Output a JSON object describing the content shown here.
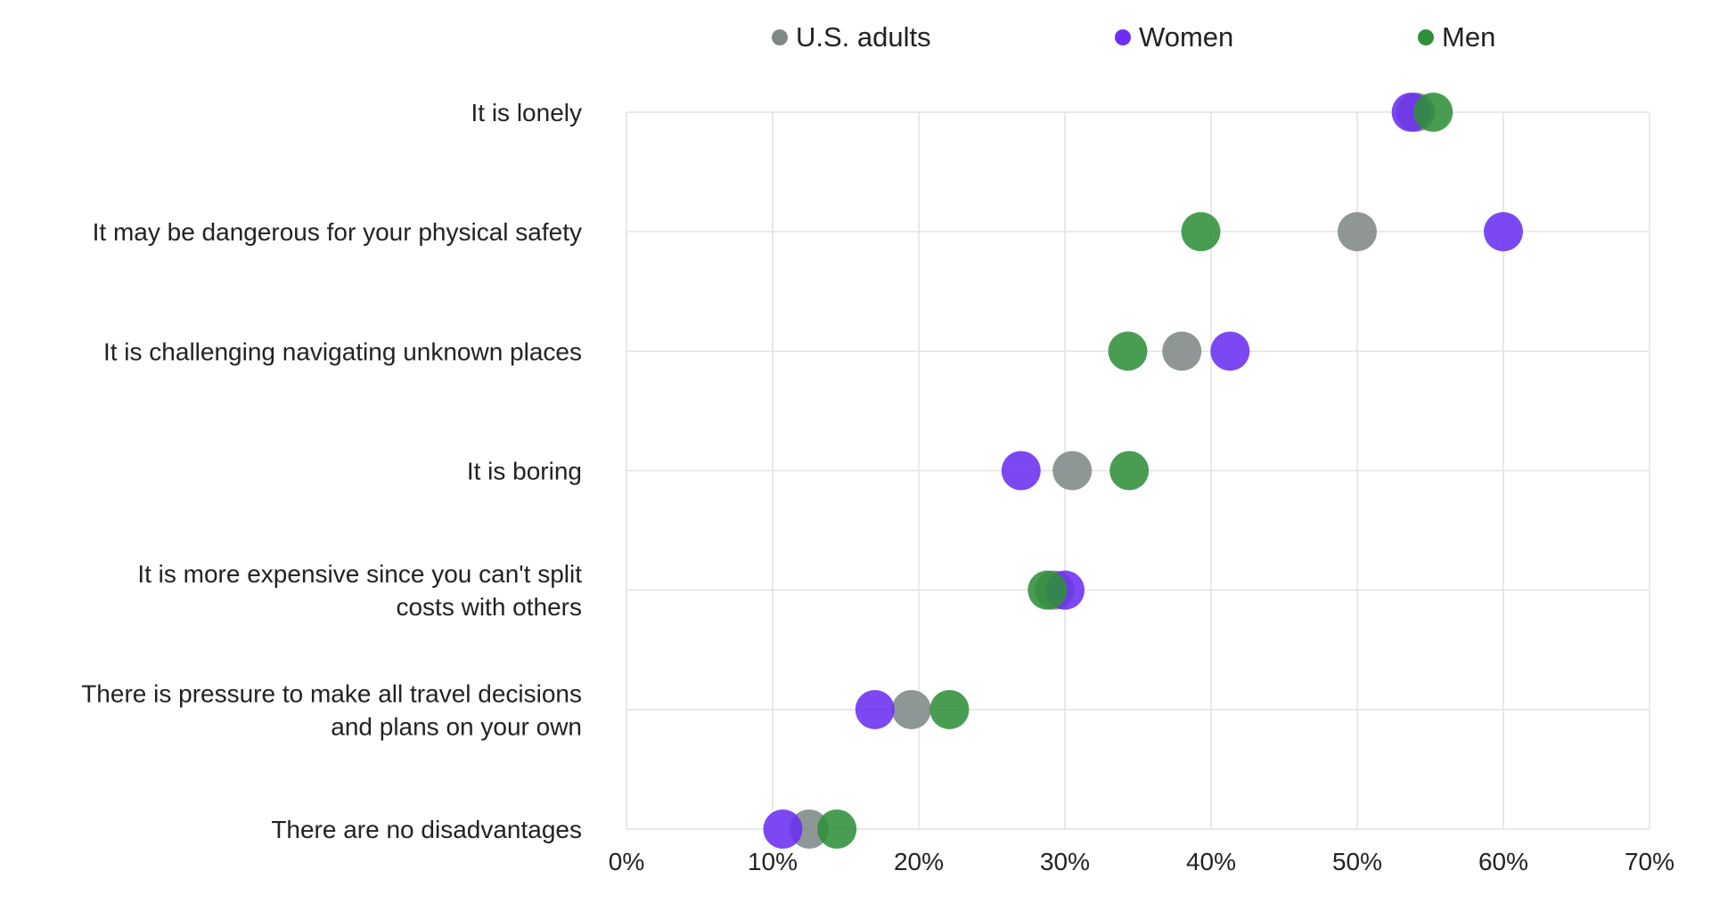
{
  "chart_data": {
    "type": "scatter",
    "categories": [
      "It is lonely",
      "It may be dangerous for your physical safety",
      "It is challenging navigating unknown places",
      "It is boring",
      "It is more expensive since you can't split costs with others",
      "There is pressure to make all travel decisions and plans on your own",
      "There are no disadvantages"
    ],
    "category_lines": [
      [
        "It is lonely"
      ],
      [
        "It may be dangerous for your physical safety"
      ],
      [
        "It is challenging navigating unknown places"
      ],
      [
        "It is boring"
      ],
      [
        "It is more expensive since you can't split",
        "costs with others"
      ],
      [
        "There is pressure to make all travel decisions",
        "and plans on your own"
      ],
      [
        "There are no disadvantages"
      ]
    ],
    "series": [
      {
        "name": "U.S. adults",
        "color": "#7f8788",
        "values": [
          54,
          50,
          38,
          30.5,
          29.3,
          19.5,
          12.5
        ]
      },
      {
        "name": "Women",
        "color": "#6a2ff0",
        "values": [
          53.7,
          60,
          41.3,
          27,
          30,
          17,
          10.7
        ]
      },
      {
        "name": "Men",
        "color": "#2f8f3a",
        "values": [
          55.2,
          39.3,
          34.3,
          34.4,
          28.8,
          22.1,
          14.4
        ]
      }
    ],
    "xlim": [
      0,
      70
    ],
    "xticks": [
      "0%",
      "10%",
      "20%",
      "30%",
      "40%",
      "50%",
      "60%",
      "70%"
    ],
    "grid": true,
    "legend_position": "top"
  }
}
